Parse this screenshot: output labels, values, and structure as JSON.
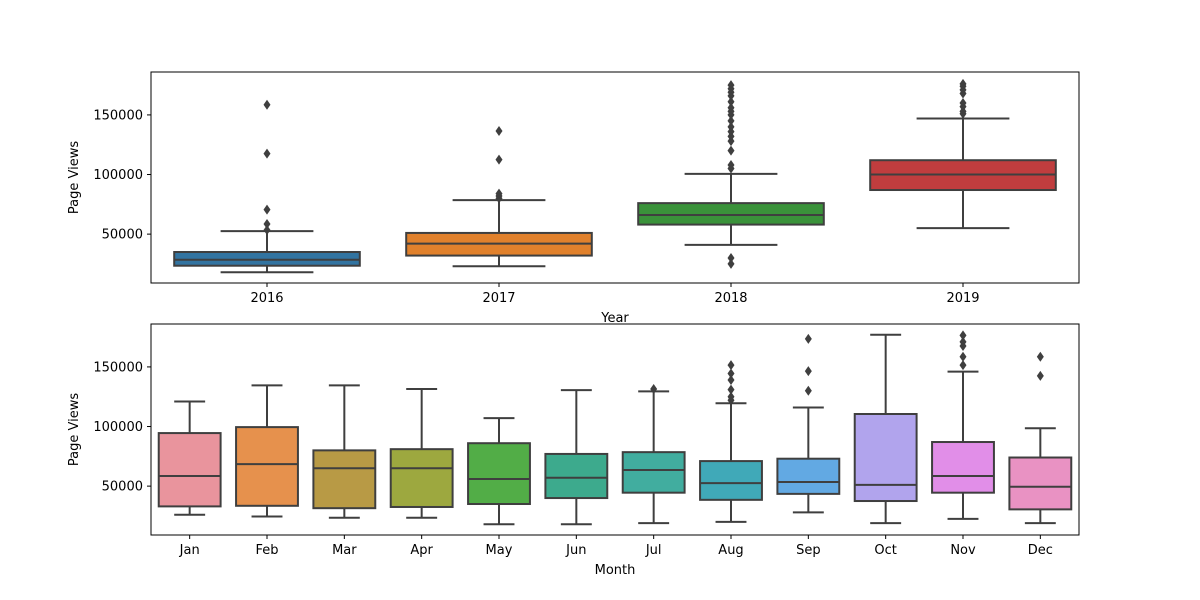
{
  "chart_data": [
    {
      "type": "box",
      "xlabel": "Year",
      "ylabel": "Page Views",
      "categories": [
        "2016",
        "2017",
        "2018",
        "2019"
      ],
      "yticks": [
        50000,
        100000,
        150000
      ],
      "ytick_labels": [
        "50000",
        "100000",
        "150000"
      ],
      "ylim": [
        9000,
        186000
      ],
      "grid": false,
      "boxes": [
        {
          "category": "2016",
          "color": "#3274a1",
          "whisker_low": 18000,
          "q1": 23500,
          "median": 28500,
          "q3": 35000,
          "whisker_high": 52500,
          "outliers": [
            53500,
            58500,
            70500,
            117500,
            158500
          ]
        },
        {
          "category": "2017",
          "color": "#e1812c",
          "whisker_low": 23000,
          "q1": 32000,
          "median": 42000,
          "q3": 51000,
          "whisker_high": 78500,
          "outliers": [
            80000,
            82000,
            84000,
            112500,
            136500
          ]
        },
        {
          "category": "2018",
          "color": "#3a923a",
          "whisker_low": 41000,
          "q1": 58000,
          "median": 66000,
          "q3": 76000,
          "whisker_high": 100500,
          "outliers": [
            25000,
            30000,
            105000,
            108000,
            120000,
            128000,
            132000,
            136000,
            140000,
            145000,
            150000,
            153000,
            156000,
            161000,
            166000,
            169000,
            172000,
            175000
          ]
        },
        {
          "category": "2019",
          "color": "#c03d3e",
          "whisker_low": 55000,
          "q1": 87000,
          "median": 100000,
          "q3": 112000,
          "whisker_high": 147000,
          "outliers": [
            151000,
            153000,
            157000,
            160000,
            168000,
            171000,
            174000,
            176000
          ]
        }
      ]
    },
    {
      "type": "box",
      "xlabel": "Month",
      "ylabel": "Page Views",
      "categories": [
        "Jan",
        "Feb",
        "Mar",
        "Apr",
        "May",
        "Jun",
        "Jul",
        "Aug",
        "Sep",
        "Oct",
        "Nov",
        "Dec"
      ],
      "yticks": [
        50000,
        100000,
        150000
      ],
      "ytick_labels": [
        "50000",
        "100000",
        "150000"
      ],
      "ylim": [
        9000,
        186000
      ],
      "grid": false,
      "boxes": [
        {
          "category": "Jan",
          "color": "#e9949d",
          "whisker_low": 26000,
          "q1": 33000,
          "median": 58500,
          "q3": 94500,
          "whisker_high": 121000,
          "outliers": []
        },
        {
          "category": "Feb",
          "color": "#e6914d",
          "whisker_low": 24500,
          "q1": 33500,
          "median": 68500,
          "q3": 99500,
          "whisker_high": 134500,
          "outliers": []
        },
        {
          "category": "Mar",
          "color": "#b89a45",
          "whisker_low": 23500,
          "q1": 31500,
          "median": 65000,
          "q3": 80000,
          "whisker_high": 134500,
          "outliers": []
        },
        {
          "category": "Apr",
          "color": "#9da83f",
          "whisker_low": 23500,
          "q1": 32500,
          "median": 65000,
          "q3": 81000,
          "whisker_high": 131500,
          "outliers": []
        },
        {
          "category": "May",
          "color": "#52ad47",
          "whisker_low": 18000,
          "q1": 35000,
          "median": 56000,
          "q3": 86000,
          "whisker_high": 107000,
          "outliers": []
        },
        {
          "category": "Jun",
          "color": "#3daa8d",
          "whisker_low": 18000,
          "q1": 40000,
          "median": 57000,
          "q3": 77000,
          "whisker_high": 130500,
          "outliers": []
        },
        {
          "category": "Jul",
          "color": "#41ad9f",
          "whisker_low": 19000,
          "q1": 44500,
          "median": 63500,
          "q3": 78500,
          "whisker_high": 129500,
          "outliers": [
            131500
          ]
        },
        {
          "category": "Aug",
          "color": "#40a9b8",
          "whisker_low": 20000,
          "q1": 38500,
          "median": 52500,
          "q3": 71000,
          "whisker_high": 119500,
          "outliers": [
            122000,
            125000,
            131000,
            139000,
            144500,
            151500
          ]
        },
        {
          "category": "Sep",
          "color": "#62a9e3",
          "whisker_low": 28000,
          "q1": 43500,
          "median": 53500,
          "q3": 73000,
          "whisker_high": 116000,
          "outliers": [
            130000,
            146500,
            173500
          ]
        },
        {
          "category": "Oct",
          "color": "#b1a4ed",
          "whisker_low": 19000,
          "q1": 37500,
          "median": 51000,
          "q3": 110500,
          "whisker_high": 177000,
          "outliers": []
        },
        {
          "category": "Nov",
          "color": "#e18ee8",
          "whisker_low": 22500,
          "q1": 44500,
          "median": 58500,
          "q3": 87000,
          "whisker_high": 146000,
          "outliers": [
            151500,
            158500,
            167500,
            171000,
            176500
          ]
        },
        {
          "category": "Dec",
          "color": "#e992c3",
          "whisker_low": 19000,
          "q1": 30500,
          "median": 49500,
          "q3": 74000,
          "whisker_high": 98500,
          "outliers": [
            142500,
            158500
          ]
        }
      ]
    }
  ]
}
